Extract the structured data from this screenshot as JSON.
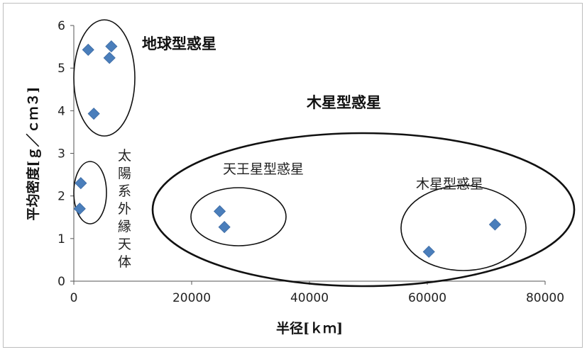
{
  "chart_data": {
    "type": "scatter",
    "xlabel": "半径[ｋｍ]",
    "ylabel": "平均密度[ｇ／ｃｍ３]",
    "xlim": [
      0,
      80000
    ],
    "ylim": [
      0,
      6
    ],
    "x_ticks": [
      "0",
      "20000",
      "40000",
      "60000",
      "80000"
    ],
    "y_ticks": [
      "0",
      "1",
      "2",
      "3",
      "4",
      "5",
      "6"
    ],
    "grid": false,
    "legend": "none",
    "marker": "diamond",
    "marker_color": "#4a7ebb",
    "points": [
      {
        "x": 2440,
        "y": 5.43
      },
      {
        "x": 6052,
        "y": 5.24
      },
      {
        "x": 6371,
        "y": 5.51
      },
      {
        "x": 3390,
        "y": 3.93
      },
      {
        "x": 1188,
        "y": 2.3
      },
      {
        "x": 1000,
        "y": 1.7
      },
      {
        "x": 24764,
        "y": 1.64
      },
      {
        "x": 25559,
        "y": 1.27
      },
      {
        "x": 60268,
        "y": 0.69
      },
      {
        "x": 71492,
        "y": 1.33
      }
    ],
    "annotations": {
      "terrestrial": "地球型惑星",
      "jovian": "木星型惑星",
      "ice_giant": "天王星型惑星",
      "gas_giant": "木星型惑星",
      "tno": "太陽系外縁天体"
    }
  }
}
